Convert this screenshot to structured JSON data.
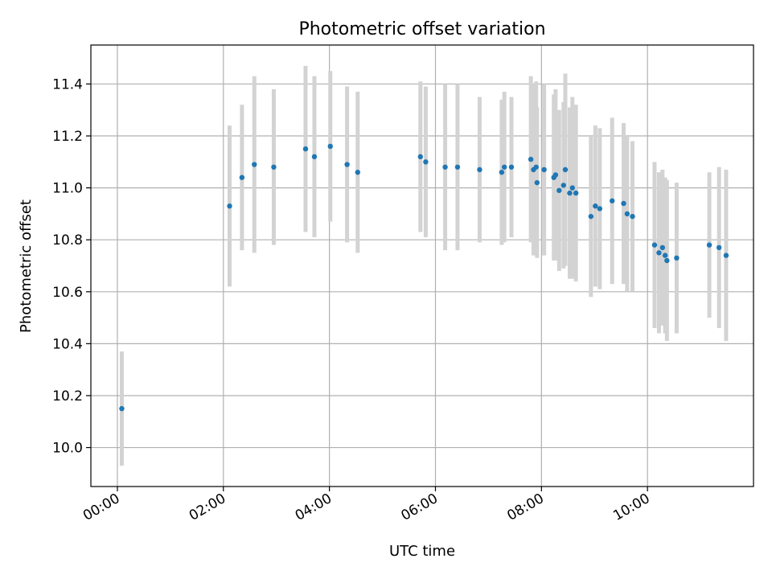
{
  "chart_data": {
    "type": "scatter",
    "title": "Photometric offset variation",
    "xlabel": "UTC time",
    "ylabel": "Photometric offset",
    "grid": true,
    "x_ticks": [
      "00:00",
      "02:00",
      "04:00",
      "06:00",
      "08:00",
      "10:00"
    ],
    "y_ticks": [
      "10.0",
      "10.2",
      "10.4",
      "10.6",
      "10.8",
      "11.0",
      "11.2",
      "11.4"
    ],
    "xlim": [
      "-00:30",
      "12:00"
    ],
    "ylim": [
      9.85,
      11.55
    ],
    "colors": {
      "points": "#1f77b4",
      "error_bars": "#d3d3d3",
      "grid": "#b0b0b0"
    },
    "series": [
      {
        "x": [
          "00:05",
          "02:07",
          "02:21",
          "02:35",
          "02:57",
          "03:33",
          "03:43",
          "04:01",
          "04:20",
          "04:32",
          "05:43",
          "05:49",
          "06:11",
          "06:25",
          "06:50",
          "07:15",
          "07:18",
          "07:26",
          "07:48",
          "07:51",
          "07:54",
          "07:55",
          "08:03",
          "08:14",
          "08:16",
          "08:20",
          "08:25",
          "08:27",
          "08:32",
          "08:35",
          "08:39",
          "08:56",
          "09:01",
          "09:06",
          "09:20",
          "09:33",
          "09:37",
          "09:43",
          "10:08",
          "10:13",
          "10:17",
          "10:20",
          "10:22",
          "10:33",
          "11:10",
          "11:21",
          "11:29"
        ],
        "y": [
          10.15,
          10.93,
          11.04,
          11.09,
          11.08,
          11.15,
          11.12,
          11.16,
          11.09,
          11.06,
          11.12,
          11.1,
          11.08,
          11.08,
          11.07,
          11.06,
          11.08,
          11.08,
          11.11,
          11.07,
          11.08,
          11.02,
          11.07,
          11.04,
          11.05,
          10.99,
          11.01,
          11.07,
          10.98,
          11.0,
          10.98,
          10.89,
          10.93,
          10.92,
          10.95,
          10.94,
          10.9,
          10.89,
          10.78,
          10.75,
          10.77,
          10.74,
          10.72,
          10.73,
          10.78,
          10.77,
          10.74
        ],
        "error": [
          0.22,
          0.31,
          0.28,
          0.34,
          0.3,
          0.32,
          0.31,
          0.29,
          0.3,
          0.31,
          0.29,
          0.29,
          0.32,
          0.32,
          0.28,
          0.28,
          0.29,
          0.27,
          0.32,
          0.33,
          0.33,
          0.29,
          0.33,
          0.32,
          0.33,
          0.31,
          0.32,
          0.37,
          0.33,
          0.35,
          0.34,
          0.31,
          0.31,
          0.31,
          0.32,
          0.31,
          0.3,
          0.29,
          0.32,
          0.31,
          0.3,
          0.3,
          0.31,
          0.29,
          0.28,
          0.31,
          0.33
        ]
      }
    ]
  }
}
